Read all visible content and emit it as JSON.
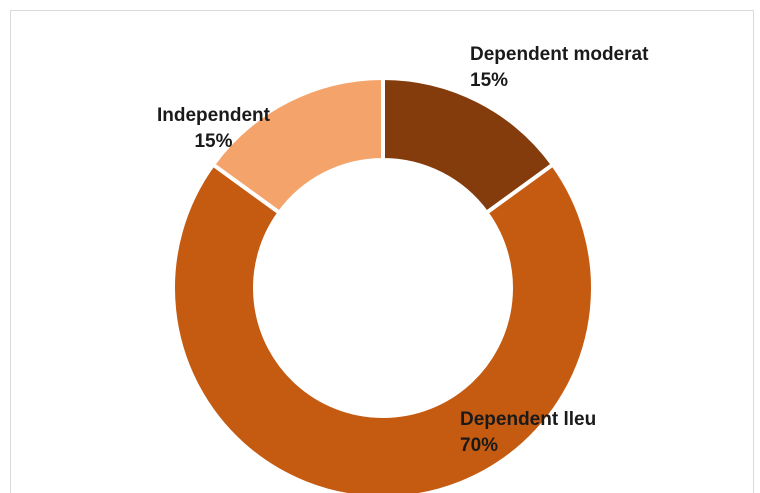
{
  "chart_data": {
    "type": "pie",
    "variant": "donut",
    "start": "12 o'clock",
    "direction": "clockwise",
    "slices": [
      {
        "label": "Dependent moderat",
        "value": 15,
        "value_label": "15%",
        "color": "#843c0c"
      },
      {
        "label": "Dependent lleu",
        "value": 70,
        "value_label": "70%",
        "color": "#c55a11"
      },
      {
        "label": "Independent",
        "value": 15,
        "value_label": "15%",
        "color": "#f4a46a"
      }
    ],
    "slice_border_color": "#ffffff",
    "legend": "none"
  }
}
